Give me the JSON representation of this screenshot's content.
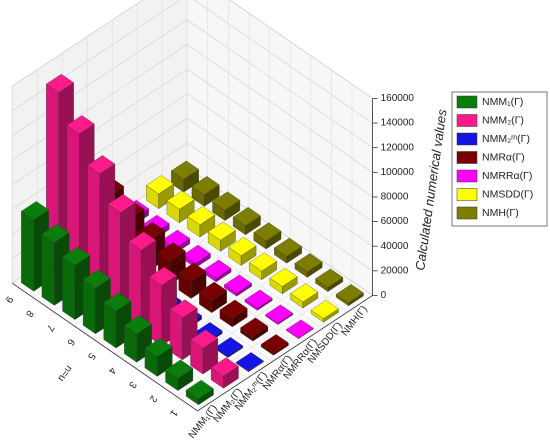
{
  "chart_data": {
    "type": "bar3d",
    "z_axis_title": "Calculated numerical values",
    "x_axis_title": "n=u",
    "categories": [
      "1",
      "2",
      "3",
      "4",
      "5",
      "6",
      "7",
      "8",
      "9"
    ],
    "series": [
      {
        "name": "NMM₁(Γ)",
        "color": "#0b7d0b",
        "values": [
          5000,
          10000,
          16000,
          23000,
          30000,
          37000,
          44000,
          51000,
          58000
        ]
      },
      {
        "name": "NMM₂(Γ)",
        "color": "#ff1a8c",
        "values": [
          10000,
          21000,
          34000,
          49000,
          66000,
          85000,
          105000,
          126000,
          148000
        ]
      },
      {
        "name": "NMM₂ᵐ(Γ)",
        "color": "#1414e6",
        "values": [
          800,
          1500,
          2200,
          3000,
          3800,
          4600,
          5400,
          6200,
          7000
        ]
      },
      {
        "name": "NMRα(Γ)",
        "color": "#7a0000",
        "values": [
          2000,
          4000,
          7000,
          10000,
          14000,
          19000,
          24000,
          30000,
          37000
        ]
      },
      {
        "name": "NMRRα(Γ)",
        "color": "#ff00ff",
        "values": [
          600,
          1200,
          1800,
          2400,
          3000,
          3600,
          4200,
          4800,
          5400
        ]
      },
      {
        "name": "NMSDD(Γ)",
        "color": "#ffff00",
        "values": [
          3000,
          5000,
          6000,
          7000,
          8000,
          9000,
          10000,
          11000,
          12000
        ]
      },
      {
        "name": "NMH(Γ)",
        "color": "#7d7d00",
        "values": [
          2500,
          3500,
          4500,
          5500,
          6500,
          7500,
          8500,
          9500,
          10500
        ]
      }
    ],
    "zlim": [
      0,
      160000
    ],
    "zticks": [
      0,
      20000,
      40000,
      60000,
      80000,
      100000,
      120000,
      140000,
      160000
    ],
    "grid": true,
    "legend": "right"
  }
}
